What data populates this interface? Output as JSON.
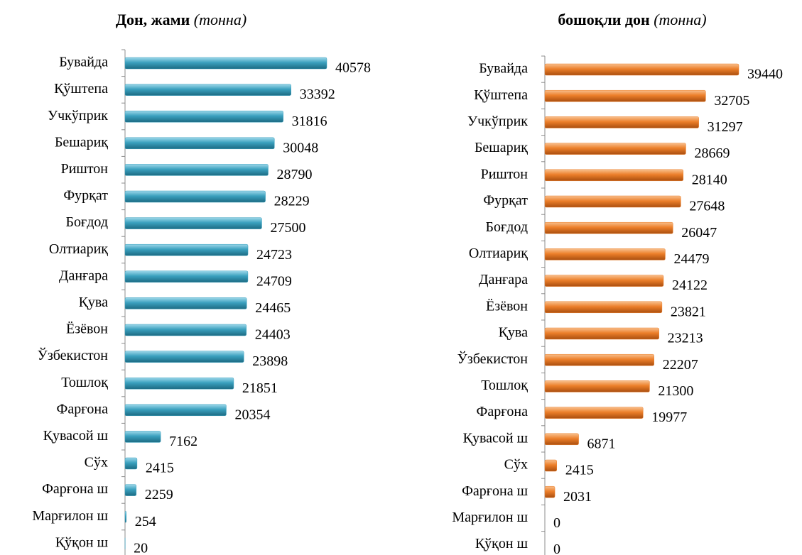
{
  "chart_data": [
    {
      "type": "bar",
      "orientation": "horizontal",
      "title": "Дон, жами",
      "unit": "(тонна)",
      "color": "#3aa0be",
      "categories": [
        "Бувайда",
        "Қўштепа",
        "Учкўприк",
        "Бешариқ",
        "Риштон",
        "Фурқат",
        "Боғдод",
        "Олтиариқ",
        "Данғара",
        "Қува",
        "Ёзёвон",
        "Ўзбекистон",
        "Тошлоқ",
        "Фарғона",
        "Қувасой ш",
        "Сўх",
        "Фарғона ш",
        "Марғилон ш",
        "Қўқон ш"
      ],
      "values": [
        40578,
        33392,
        31816,
        30048,
        28790,
        28229,
        27500,
        24723,
        24709,
        24465,
        24403,
        23898,
        21851,
        20354,
        7162,
        2415,
        2259,
        254,
        20
      ]
    },
    {
      "type": "bar",
      "orientation": "horizontal",
      "title": "бошоқли дон",
      "unit": "(тонна)",
      "color": "#ec7f2a",
      "categories": [
        "Бувайда",
        "Қўштепа",
        "Учкўприк",
        "Бешариқ",
        "Риштон",
        "Фурқат",
        "Боғдод",
        "Олтиариқ",
        "Данғара",
        "Ёзёвон",
        "Қува",
        "Ўзбекистон",
        "Тошлоқ",
        "Фарғона",
        "Қувасой ш",
        "Сўх",
        "Фарғона ш",
        "Марғилон ш",
        "Қўқон ш"
      ],
      "values": [
        39440,
        32705,
        31297,
        28669,
        28140,
        27648,
        26047,
        24479,
        24122,
        23821,
        23213,
        22207,
        21300,
        19977,
        6871,
        2415,
        2031,
        0,
        0
      ]
    }
  ]
}
